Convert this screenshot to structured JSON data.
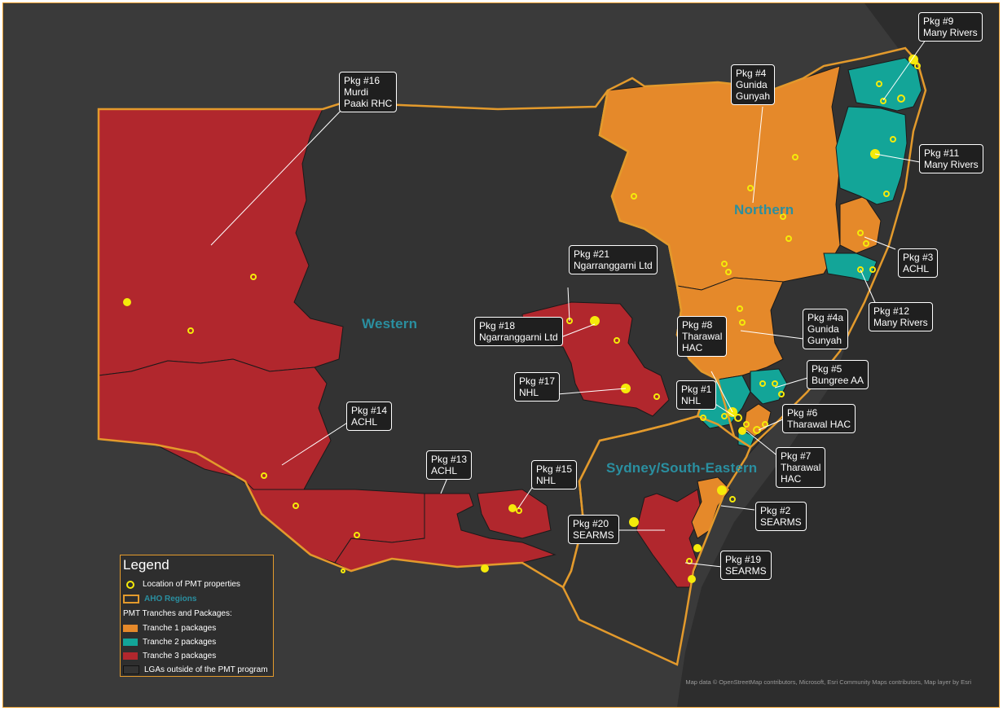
{
  "colors": {
    "tranche1": "#e5892a",
    "tranche2": "#13a598",
    "tranche3": "#b1272d",
    "outside": "#333333",
    "region_border": "#e39a2c",
    "property": "#f5ea0a",
    "region_label": "#2a8fa0"
  },
  "regions": {
    "western": "Western",
    "northern": "Northern",
    "sydney": "Sydney/South-Eastern"
  },
  "callouts": [
    {
      "id": "pkg16",
      "lines": [
        "Pkg #16",
        "Murdi",
        "Paaki RHC"
      ]
    },
    {
      "id": "pkg4",
      "lines": [
        "Pkg #4",
        "Gunida",
        "Gunyah"
      ]
    },
    {
      "id": "pkg9",
      "lines": [
        "Pkg #9",
        "Many Rivers"
      ]
    },
    {
      "id": "pkg11",
      "lines": [
        "Pkg #11",
        "Many Rivers"
      ]
    },
    {
      "id": "pkg3",
      "lines": [
        "Pkg #3",
        "ACHL"
      ]
    },
    {
      "id": "pkg12",
      "lines": [
        "Pkg #12",
        "Many Rivers"
      ]
    },
    {
      "id": "pkg21",
      "lines": [
        "Pkg #21",
        "Ngarranggarni Ltd"
      ]
    },
    {
      "id": "pkg18",
      "lines": [
        "Pkg #18",
        "Ngarranggarni Ltd"
      ]
    },
    {
      "id": "pkg8",
      "lines": [
        "Pkg #8",
        "Tharawal",
        "HAC"
      ]
    },
    {
      "id": "pkg4a",
      "lines": [
        "Pkg #4a",
        "Gunida",
        "Gunyah"
      ]
    },
    {
      "id": "pkg5",
      "lines": [
        "Pkg #5",
        "Bungree AA"
      ]
    },
    {
      "id": "pkg17",
      "lines": [
        "Pkg #17",
        "NHL"
      ]
    },
    {
      "id": "pkg1",
      "lines": [
        "Pkg #1",
        "NHL"
      ]
    },
    {
      "id": "pkg6",
      "lines": [
        "Pkg #6",
        "Tharawal HAC"
      ]
    },
    {
      "id": "pkg7",
      "lines": [
        "Pkg #7",
        "Tharawal",
        "HAC"
      ]
    },
    {
      "id": "pkg14",
      "lines": [
        "Pkg #14",
        "ACHL"
      ]
    },
    {
      "id": "pkg13",
      "lines": [
        "Pkg #13",
        "ACHL"
      ]
    },
    {
      "id": "pkg15",
      "lines": [
        "Pkg #15",
        "NHL"
      ]
    },
    {
      "id": "pkg2",
      "lines": [
        "Pkg #2",
        "SEARMS"
      ]
    },
    {
      "id": "pkg20",
      "lines": [
        "Pkg #20",
        "SEARMS"
      ]
    },
    {
      "id": "pkg19",
      "lines": [
        "Pkg #19",
        "SEARMS"
      ]
    }
  ],
  "legend": {
    "title": "Legend",
    "location_label": "Location of PMT properties",
    "regions_label": "AHO Regions",
    "packages_heading": "PMT Tranches and Packages:",
    "tranche1": "Tranche 1 packages",
    "tranche2": "Tranche 2 packages",
    "tranche3": "Tranche 3 packages",
    "outside": "LGAs outside of the PMT program"
  },
  "attribution": "Map data © OpenStreetMap contributors, Microsoft, Esri Community Maps contributors, Map layer by Esri"
}
